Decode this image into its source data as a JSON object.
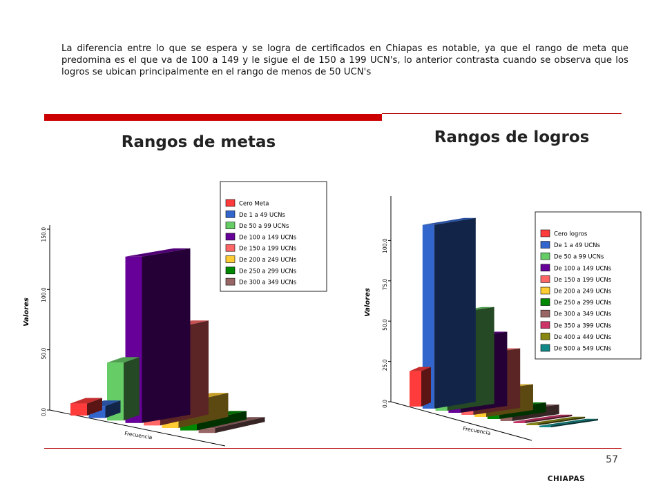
{
  "paragraph": "La diferencia entre lo  que se espera y se logra de certificados en Chiapas es notable, ya que el rango de meta que predomina es el que va de 100 a 149 y le sigue el de 150 a 199 UCN's, lo anterior contrasta  cuando se observa que los logros se ubican principalmente en el rango de menos de 50 UCN's",
  "titles": {
    "metas": "Rangos de metas",
    "logros": "Rangos de logros"
  },
  "page_number": "57",
  "footer": "CHIAPAS",
  "chart_data": [
    {
      "type": "bar",
      "ylabel": "Valores",
      "xlabel": "Frecuencia",
      "ylim": [
        0,
        150
      ],
      "yticks": [
        "0.0",
        "50.0",
        "100.0",
        "150.0"
      ],
      "legend_position": "top-right",
      "grid": false,
      "categories": [
        "Cero Meta",
        "De 1 a 49 UCNs",
        "De 50 a 99 UCNs",
        "De 100 a 149 UCNs",
        "De 150 a 199 UCNs",
        "De 200 a 249 UCNs",
        "De 250 a 299 UCNs",
        "De 300 a 349 UCNs"
      ],
      "values": [
        10,
        10,
        48,
        138,
        78,
        20,
        7,
        4
      ],
      "colors": [
        "#ff3b3b",
        "#3366cc",
        "#66cc66",
        "#660099",
        "#ff6666",
        "#ffcc33",
        "#008800",
        "#996666"
      ]
    },
    {
      "type": "bar",
      "ylabel": "Valores",
      "xlabel": "Frecuencia",
      "ylim": [
        0,
        125
      ],
      "yticks": [
        "0.0",
        "25.0",
        "50.0",
        "75.0",
        "100.0"
      ],
      "legend_position": "right",
      "grid": false,
      "categories": [
        "Cero logros",
        "De 1 a 49 UCNs",
        "De 50 a 99 UCNs",
        "De 100 a 149 UCNs",
        "De 150 a 199 UCNs",
        "De 200 a 249 UCNs",
        "De 250 a 299 UCNs",
        "De 300 a 349 UCNs",
        "De 350 a 399 UCNs",
        "De 400 a 449 UCNs",
        "De 500 a 549 UCNs"
      ],
      "values": [
        22,
        114,
        60,
        46,
        37,
        16,
        6,
        6,
        1,
        1,
        1
      ],
      "colors": [
        "#ff3b3b",
        "#3366cc",
        "#66cc66",
        "#660099",
        "#ff6666",
        "#ffcc33",
        "#008800",
        "#996666",
        "#cc3366",
        "#888811",
        "#118888"
      ]
    }
  ]
}
